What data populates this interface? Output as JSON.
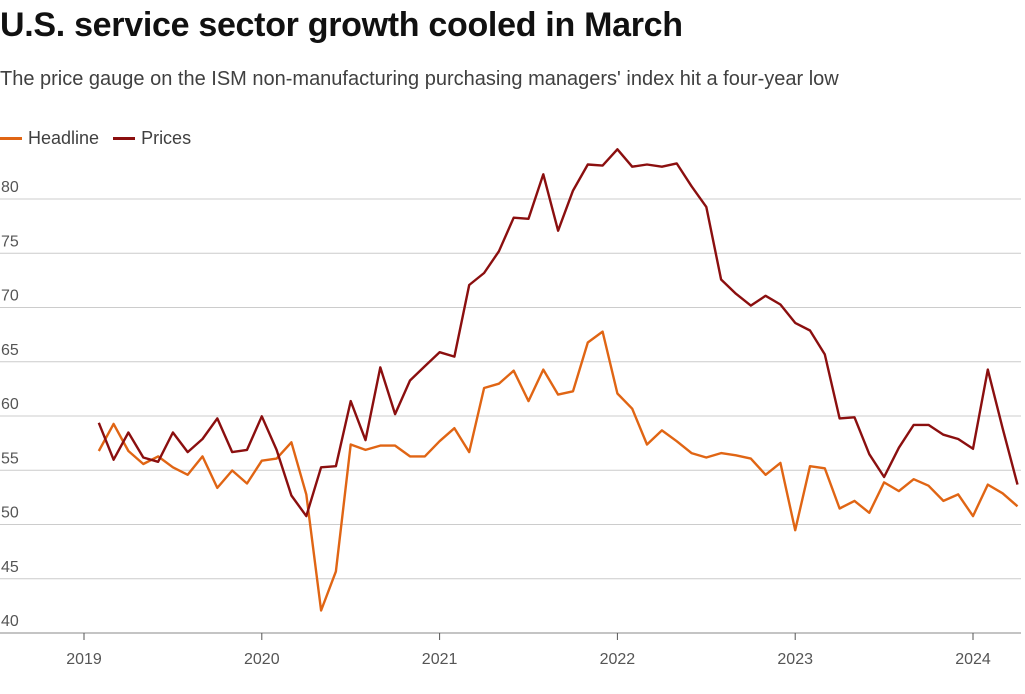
{
  "title": "U.S. service sector growth cooled in March",
  "subtitle": "The price gauge on the ISM non-manufacturing purchasing managers' index hit a four-year low",
  "colors": {
    "headline": "#e06514",
    "prices": "#8b0f0f",
    "grid": "#cccccc",
    "axis": "#555555"
  },
  "chart_data": {
    "type": "line",
    "title": "U.S. service sector growth cooled in March",
    "subtitle": "The price gauge on the ISM non-manufacturing purchasing managers' index hit a four-year low",
    "xlabel": "",
    "ylabel": "",
    "ylim": [
      40,
      85
    ],
    "yticks": [
      40,
      45,
      50,
      55,
      60,
      65,
      70,
      75,
      80
    ],
    "xticks": [
      "2019",
      "2020",
      "2021",
      "2022",
      "2023",
      "2024"
    ],
    "xrange": [
      "2019-01",
      "2024-03"
    ],
    "grid": true,
    "legend_position": "top-left",
    "series": [
      {
        "name": "Headline",
        "color_key": "headline",
        "values": [
          56.5,
          59.0,
          56.5,
          55.3,
          56.0,
          55.0,
          54.3,
          56.0,
          53.1,
          54.7,
          53.5,
          55.6,
          55.8,
          57.3,
          52.5,
          41.8,
          45.4,
          57.1,
          56.6,
          57.0,
          57.0,
          56.0,
          56.0,
          57.4,
          58.6,
          56.4,
          62.3,
          62.7,
          63.9,
          61.1,
          64.0,
          61.7,
          62.0,
          66.5,
          67.5,
          61.8,
          60.4,
          57.1,
          58.4,
          57.4,
          56.3,
          55.9,
          56.3,
          56.1,
          55.8,
          54.3,
          55.4,
          49.2,
          55.1,
          54.9,
          51.2,
          51.9,
          50.8,
          53.6,
          52.8,
          53.9,
          53.3,
          51.9,
          52.5,
          50.5,
          53.4,
          52.6,
          51.4
        ]
      },
      {
        "name": "Prices",
        "color_key": "prices",
        "values": [
          59.1,
          55.7,
          58.2,
          55.9,
          55.5,
          58.2,
          56.4,
          57.6,
          59.5,
          56.4,
          56.6,
          59.7,
          56.6,
          52.4,
          50.5,
          55.0,
          55.1,
          61.1,
          57.5,
          64.2,
          59.9,
          63.0,
          64.3,
          65.6,
          65.2,
          71.8,
          72.9,
          74.9,
          78.0,
          77.9,
          82.0,
          76.8,
          80.5,
          82.9,
          82.8,
          84.3,
          82.7,
          82.9,
          82.7,
          83.0,
          80.9,
          79.0,
          72.3,
          71.0,
          69.9,
          70.8,
          70.0,
          68.3,
          67.6,
          65.4,
          59.5,
          59.6,
          56.2,
          54.1,
          56.8,
          58.9,
          58.9,
          58.0,
          57.6,
          56.7,
          64.0,
          58.6,
          53.4
        ]
      }
    ]
  }
}
